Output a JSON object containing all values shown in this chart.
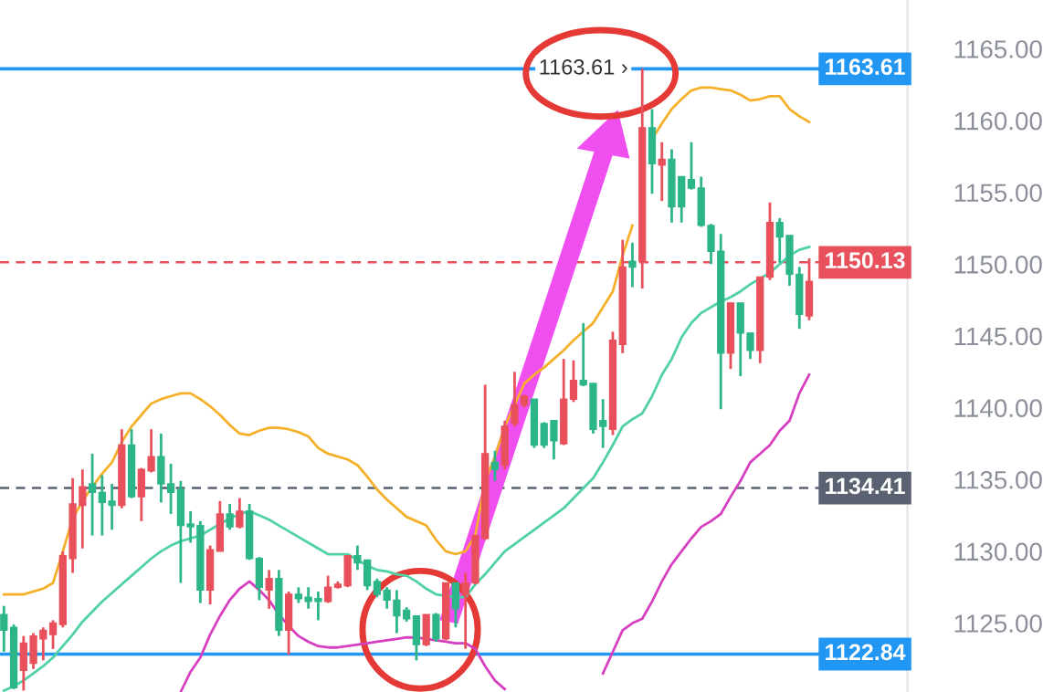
{
  "chart_data": {
    "type": "candlestick",
    "categories": [
      null,
      null,
      null,
      null,
      null,
      null,
      null,
      null,
      null,
      null,
      null,
      null,
      null,
      null,
      null,
      null,
      null,
      null,
      null,
      null,
      null,
      null,
      null,
      null,
      null,
      null,
      null,
      null,
      null,
      null,
      null,
      null,
      null,
      null,
      null,
      null,
      null,
      null,
      null,
      null,
      null,
      null,
      null,
      null,
      null,
      null,
      null,
      null,
      null,
      null,
      null,
      null,
      null,
      null,
      null,
      null,
      null,
      null,
      null,
      null,
      null,
      null,
      null,
      null,
      null,
      null,
      null,
      null,
      null,
      null,
      null,
      null,
      null,
      null,
      null,
      null,
      null,
      null,
      null,
      null,
      null,
      null,
      null
    ],
    "ylim": [
      1120.2,
      1168.4
    ],
    "yticks": [
      {
        "value": 1125,
        "label": "1125.00"
      },
      {
        "value": 1130,
        "label": "1130.00"
      },
      {
        "value": 1135,
        "label": "1135.00"
      },
      {
        "value": 1140,
        "label": "1140.00"
      },
      {
        "value": 1145,
        "label": "1145.00"
      },
      {
        "value": 1150,
        "label": "1150.00"
      },
      {
        "value": 1155,
        "label": "1155.00"
      },
      {
        "value": 1160,
        "label": "1160.00"
      },
      {
        "value": 1165,
        "label": "1165.00"
      }
    ],
    "tick_labels": "y",
    "grid": false,
    "series": [
      {
        "type": "line",
        "color": "#f5b02a",
        "values": [
          1127.0,
          1127.0,
          1127.0,
          1127.2,
          1127.4,
          1127.8,
          1130.0,
          1132.3,
          1133.5,
          1134.5,
          1135.4,
          1136.2,
          1137.6,
          1138.7,
          1139.5,
          1140.3,
          1140.6,
          1140.8,
          1141.0,
          1141.0,
          1140.6,
          1140.1,
          1139.5,
          1138.8,
          1138.2,
          1138.1,
          1138.4,
          1138.6,
          1138.6,
          1138.5,
          1138.3,
          1138.0,
          1137.2,
          1136.8,
          1136.6,
          1136.4,
          1136.0,
          1135.2,
          1134.3,
          1133.6,
          1133.0,
          1132.4,
          1132.1,
          1131.8,
          1130.8,
          1130.0,
          1129.8,
          1130.0,
          1131.1,
          1134.9,
          1136.6,
          1138.7,
          1140.2,
          1141.7,
          1142.3,
          1142.8,
          1143.4,
          1144.0,
          1144.7,
          1145.3,
          1145.9,
          1147.0,
          1148.1,
          1150.6,
          1152.7,
          null,
          1158.7,
          1159.8,
          1160.8,
          1161.5,
          1162.1,
          1162.3,
          1162.3,
          1162.2,
          1162.1,
          1161.8,
          1161.4,
          1161.5,
          1161.7,
          1161.7,
          1160.8,
          1160.3,
          1159.9
        ]
      },
      {
        "type": "line",
        "color": "#4fd1a5",
        "values": [
          1120.3,
          1120.6,
          1121.0,
          1121.5,
          1122.0,
          1122.6,
          1123.4,
          1124.2,
          1125.1,
          1125.8,
          1126.5,
          1127.1,
          1127.7,
          1128.3,
          1128.9,
          1129.5,
          1130.0,
          1130.4,
          1130.7,
          1130.9,
          1131.1,
          1131.5,
          1131.9,
          1132.3,
          1132.6,
          1132.8,
          1132.5,
          1132.2,
          1131.8,
          1131.4,
          1131.0,
          1130.6,
          1130.2,
          1129.8,
          1129.8,
          1129.8,
          1129.4,
          1129.0,
          1128.7,
          1128.6,
          1128.4,
          1128.3,
          1127.9,
          1127.4,
          1127.0,
          1126.9,
          1126.8,
          1126.8,
          1127.7,
          1128.4,
          1129.2,
          1130.0,
          1130.5,
          1131.0,
          1131.5,
          1132.0,
          1132.5,
          1133.0,
          1133.7,
          1134.4,
          1135.1,
          1136.2,
          1137.4,
          1138.7,
          1139.2,
          1139.6,
          1140.8,
          1142.3,
          1143.4,
          1144.9,
          1145.9,
          1146.6,
          1147.0,
          1147.4,
          1147.7,
          1148.1,
          1148.6,
          1149.0,
          1149.4,
          1150.0,
          1150.6,
          1151.0,
          1151.2
        ]
      },
      {
        "type": "line",
        "color": "#d63fc0",
        "values": [
          null,
          null,
          null,
          null,
          null,
          null,
          null,
          null,
          null,
          null,
          null,
          null,
          null,
          null,
          null,
          null,
          null,
          null,
          1120.2,
          1121.6,
          1122.6,
          1124.2,
          1125.5,
          1126.6,
          1127.4,
          1127.9,
          1127.3,
          1126.6,
          1125.6,
          1124.8,
          1124.1,
          1123.7,
          1123.4,
          1123.3,
          1123.3,
          1123.4,
          1123.5,
          1123.6,
          1123.7,
          1123.8,
          1123.9,
          1124.0,
          1124.0,
          1123.9,
          1123.8,
          1123.7,
          1123.6,
          1123.6,
          1123.2,
          1122.0,
          1121.0,
          1120.4,
          null,
          null,
          null,
          null,
          null,
          null,
          null,
          null,
          null,
          1121.5,
          1123.0,
          1124.5,
          1125.0,
          1125.3,
          1126.5,
          1127.9,
          1129.1,
          1130.0,
          1130.9,
          1131.7,
          1132.1,
          1132.6,
          1133.8,
          1134.9,
          1136.2,
          1136.8,
          1137.4,
          1138.4,
          1139.1,
          1141.0,
          1142.3
        ]
      },
      {
        "colors": [
          "#2db58a",
          "#2db58a",
          "#e8505b",
          "#e8505b",
          "#e8505b",
          "#e8505b",
          "#e8505b",
          "#e8505b",
          "#e8505b",
          "#2db58a",
          "#2db58a",
          "#2db58a",
          "#e8505b",
          "#2db58a",
          "#e8505b",
          "#e8505b",
          "#2db58a",
          "#2db58a",
          "#2db58a",
          "#2db58a",
          "#2db58a",
          "#e8505b",
          "#e8505b",
          "#2db58a",
          "#e8505b",
          "#2db58a",
          "#2db58a",
          "#e8505b",
          "#2db58a",
          "#e8505b",
          "#2db58a",
          "#2db58a",
          "#2db58a",
          "#e8505b",
          "#e8505b",
          "#e8505b",
          "#2db58a",
          "#2db58a",
          "#2db58a",
          "#2db58a",
          "#2db58a",
          "#2db58a",
          "#2db58a",
          "#e8505b",
          "#2db58a",
          "#e8505b",
          "#2db58a",
          "#e8505b",
          "#e8505b",
          "#e8505b",
          "#2db58a",
          "#e8505b",
          "#e8505b",
          "#e8505b",
          "#2db58a",
          "#2db58a",
          "#2db58a",
          "#e8505b",
          "#e8505b",
          "#2db58a",
          "#2db58a",
          "#2db58a",
          "#e8505b",
          "#e8505b",
          "#2db58a",
          "#e8505b",
          "#2db58a",
          "#e8505b",
          "#2db58a",
          "#2db58a",
          "#2db58a",
          "#2db58a",
          "#2db58a",
          "#2db58a",
          "#e8505b",
          "#2db58a",
          "#2db58a",
          "#e8505b",
          "#e8505b",
          "#2db58a",
          "#2db58a",
          "#2db58a",
          "#e8505b"
        ],
        "ohlc": [
          [
            1125.6,
            1126.2,
            1123.0,
            1124.5
          ],
          [
            1124.7,
            1124.9,
            1120.4,
            1120.5
          ],
          [
            1121.7,
            1124.1,
            1120.3,
            1123.6
          ],
          [
            1122.2,
            1124.3,
            1121.8,
            1124.1
          ],
          [
            1123.9,
            1124.7,
            1122.4,
            1124.5
          ],
          [
            1124.2,
            1125.2,
            1123.2,
            1125.0
          ],
          [
            1124.9,
            1130.0,
            1124.7,
            1129.7
          ],
          [
            1129.5,
            1135.1,
            1128.5,
            1133.3
          ],
          [
            1133.2,
            1135.7,
            1130.2,
            1134.5
          ],
          [
            1134.7,
            1136.8,
            1131.1,
            1134.1
          ],
          [
            1134.1,
            1135.3,
            1131.1,
            1133.4
          ],
          [
            1133.5,
            1134.7,
            1131.5,
            1133.2
          ],
          [
            1133.2,
            1138.5,
            1133.0,
            1137.4
          ],
          [
            1137.4,
            1138.5,
            1133.7,
            1133.8
          ],
          [
            1133.8,
            1135.8,
            1132.1,
            1135.7
          ],
          [
            1135.6,
            1138.5,
            1135.5,
            1136.6
          ],
          [
            1136.6,
            1138.2,
            1133.4,
            1134.7
          ],
          [
            1134.7,
            1136.1,
            1132.6,
            1134.1
          ],
          [
            1134.3,
            1134.9,
            1127.8,
            1131.8
          ],
          [
            1131.9,
            1132.8,
            1130.6,
            1131.7
          ],
          [
            1131.8,
            1132.1,
            1126.4,
            1127.3
          ],
          [
            1127.3,
            1130.4,
            1126.3,
            1130.1
          ],
          [
            1130.0,
            1133.5,
            1130.0,
            1132.6
          ],
          [
            1132.6,
            1133.3,
            1131.5,
            1131.7
          ],
          [
            1131.7,
            1133.7,
            1131.6,
            1132.8
          ],
          [
            1132.8,
            1133.3,
            1129.4,
            1129.5
          ],
          [
            1129.5,
            1129.6,
            1126.6,
            1127.5
          ],
          [
            1127.3,
            1128.7,
            1126.0,
            1128.1
          ],
          [
            1128.1,
            1128.7,
            1124.1,
            1124.5
          ],
          [
            1124.5,
            1127.2,
            1122.8,
            1127.0
          ],
          [
            1127.0,
            1127.5,
            1126.4,
            1126.7
          ],
          [
            1126.8,
            1127.5,
            1126.0,
            1126.5
          ],
          [
            1126.7,
            1127.2,
            1125.2,
            1126.5
          ],
          [
            1126.5,
            1128.3,
            1126.4,
            1127.5
          ],
          [
            1127.5,
            1127.9,
            1127.4,
            1127.7
          ],
          [
            1127.6,
            1129.7,
            1127.5,
            1129.7
          ],
          [
            1129.7,
            1130.4,
            1128.7,
            1129.2
          ],
          [
            1129.4,
            1129.4,
            1127.3,
            1127.6
          ],
          [
            1127.9,
            1128.1,
            1126.8,
            1127.0
          ],
          [
            1127.3,
            1127.5,
            1126.0,
            1126.6
          ],
          [
            1126.6,
            1127.3,
            1124.3,
            1125.5
          ],
          [
            1125.9,
            1126.1,
            1125.1,
            1125.3
          ],
          [
            1125.5,
            1125.5,
            1122.4,
            1123.5
          ],
          [
            1123.5,
            1125.6,
            1123.4,
            1125.6
          ],
          [
            1125.6,
            1125.7,
            1123.7,
            1123.9
          ],
          [
            1123.9,
            1127.8,
            1123.8,
            1127.8
          ],
          [
            1127.8,
            1127.8,
            1124.7,
            1126.0
          ],
          [
            1127.0,
            1128.5,
            1123.2,
            1127.8
          ],
          [
            1127.8,
            1131.1,
            1127.7,
            1131.1
          ],
          [
            1130.9,
            1141.6,
            1130.8,
            1136.8
          ],
          [
            1136.2,
            1137.0,
            1134.9,
            1135.7
          ],
          [
            1136.0,
            1139.1,
            1135.7,
            1138.7
          ],
          [
            1138.9,
            1142.5,
            1138.7,
            1140.2
          ],
          [
            1140.2,
            1140.9,
            1140.0,
            1140.8
          ],
          [
            1140.6,
            1140.6,
            1137.2,
            1137.4
          ],
          [
            1138.9,
            1139.0,
            1137.2,
            1137.4
          ],
          [
            1139.1,
            1139.1,
            1136.4,
            1137.7
          ],
          [
            1137.5,
            1143.4,
            1137.4,
            1140.6
          ],
          [
            1140.6,
            1143.3,
            1140.4,
            1141.9
          ],
          [
            1141.9,
            1145.9,
            1141.5,
            1141.6
          ],
          [
            1141.7,
            1141.7,
            1138.2,
            1138.5
          ],
          [
            1139.1,
            1140.6,
            1137.2,
            1138.7
          ],
          [
            1138.5,
            1145.3,
            1138.1,
            1144.7
          ],
          [
            1144.4,
            1151.7,
            1143.8,
            1149.8
          ],
          [
            1150.2,
            1151.5,
            1148.4,
            1149.8
          ],
          [
            1150.2,
            1163.61,
            1148.3,
            1159.5
          ],
          [
            1159.5,
            1160.8,
            1154.9,
            1157.0
          ],
          [
            1156.9,
            1158.5,
            1154.4,
            1157.3
          ],
          [
            1157.3,
            1158.0,
            1152.9,
            1154.0
          ],
          [
            1156.1,
            1156.1,
            1152.9,
            1154.0
          ],
          [
            1155.9,
            1158.5,
            1155.2,
            1155.3
          ],
          [
            1155.3,
            1156.1,
            1152.6,
            1152.7
          ],
          [
            1152.7,
            1152.8,
            1150.0,
            1150.9
          ],
          [
            1150.9,
            1152.1,
            1139.9,
            1143.8
          ],
          [
            1143.8,
            1147.3,
            1142.7,
            1147.3
          ],
          [
            1147.3,
            1147.3,
            1142.2,
            1145.2
          ],
          [
            1145.2,
            1145.2,
            1143.4,
            1144.0
          ],
          [
            1144.0,
            1149.1,
            1143.1,
            1149.1
          ],
          [
            1149.1,
            1154.3,
            1148.9,
            1152.9
          ],
          [
            1152.9,
            1153.2,
            1150.1,
            1151.9
          ],
          [
            1152.0,
            1152.0,
            1148.5,
            1149.3
          ],
          [
            1149.3,
            1149.8,
            1145.5,
            1146.5
          ],
          [
            1146.4,
            1150.4,
            1146.1,
            1148.8
          ]
        ]
      }
    ],
    "ref_lines": [
      {
        "axis": "y",
        "value": 1163.61,
        "label": "1163.61",
        "color": "#2196f3",
        "line_style": "solid"
      },
      {
        "axis": "y",
        "value": 1122.84,
        "label": "1122.84",
        "color": "#2196f3",
        "line_style": "solid"
      },
      {
        "axis": "y",
        "value": 1150.13,
        "label": "1150.13",
        "color": "#e8505b",
        "line_style": "dashed"
      },
      {
        "axis": "y",
        "value": 1134.41,
        "label": "1134.41",
        "color": "#5a6170",
        "line_style": "dashed"
      }
    ],
    "annotations": [
      {
        "text": "1163.61 ›",
        "y": 1163.61
      }
    ],
    "legend": false
  }
}
